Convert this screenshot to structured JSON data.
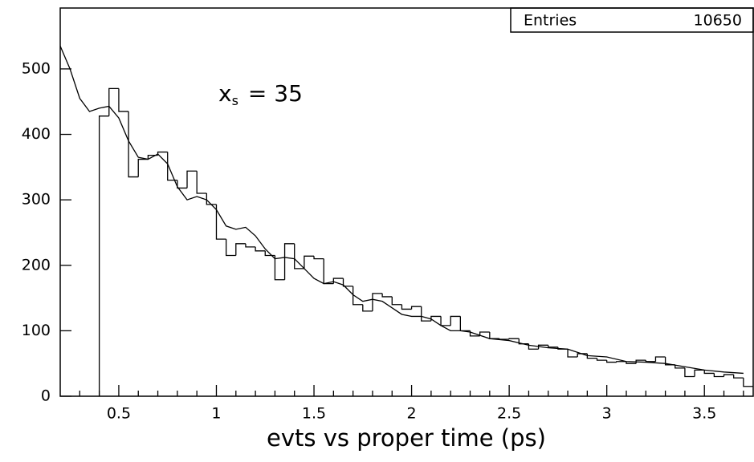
{
  "chart_data": {
    "type": "histogram",
    "xlabel": "evts vs proper time (ps)",
    "annotation": {
      "base": "x",
      "sub": "s",
      "text": "= 35"
    },
    "stats": {
      "label": "Entries",
      "value": 10650
    },
    "xlim": [
      0.2,
      3.75
    ],
    "ylim": [
      0,
      593
    ],
    "xticks": [
      0.5,
      1,
      1.5,
      2,
      2.5,
      3,
      3.5
    ],
    "xminorticks": [
      0.3,
      0.4,
      0.6,
      0.7,
      0.8,
      0.9,
      1.1,
      1.2,
      1.3,
      1.4,
      1.6,
      1.7,
      1.8,
      1.9,
      2.1,
      2.2,
      2.3,
      2.4,
      2.6,
      2.7,
      2.8,
      2.9,
      3.1,
      3.2,
      3.3,
      3.4,
      3.6,
      3.7
    ],
    "yticks": [
      0,
      100,
      200,
      300,
      400,
      500
    ],
    "color": "#000000",
    "bins": [
      0.4,
      0.45,
      0.5,
      0.55,
      0.6,
      0.65,
      0.7,
      0.75,
      0.8,
      0.85,
      0.9,
      0.95,
      1.0,
      1.05,
      1.1,
      1.15,
      1.2,
      1.25,
      1.3,
      1.35,
      1.4,
      1.45,
      1.5,
      1.55,
      1.6,
      1.65,
      1.7,
      1.75,
      1.8,
      1.85,
      1.9,
      1.95,
      2.0,
      2.05,
      2.1,
      2.15,
      2.2,
      2.25,
      2.3,
      2.35,
      2.4,
      2.45,
      2.5,
      2.55,
      2.6,
      2.65,
      2.7,
      2.75,
      2.8,
      2.85,
      2.9,
      2.95,
      3.0,
      3.05,
      3.1,
      3.15,
      3.2,
      3.25,
      3.3,
      3.35,
      3.4,
      3.45,
      3.5,
      3.55,
      3.6,
      3.65,
      3.7,
      3.75
    ],
    "counts": [
      428,
      470,
      435,
      335,
      362,
      368,
      373,
      330,
      318,
      344,
      310,
      293,
      240,
      215,
      233,
      228,
      222,
      215,
      178,
      233,
      195,
      214,
      210,
      172,
      180,
      168,
      140,
      130,
      157,
      152,
      140,
      133,
      137,
      115,
      122,
      108,
      122,
      100,
      92,
      98,
      88,
      87,
      88,
      80,
      72,
      78,
      75,
      72,
      60,
      65,
      58,
      55,
      52,
      53,
      50,
      55,
      53,
      60,
      48,
      43,
      30,
      40,
      35,
      30,
      33,
      28,
      15
    ],
    "fit": {
      "x": [
        0.2,
        0.25,
        0.3,
        0.35,
        0.4,
        0.45,
        0.5,
        0.55,
        0.6,
        0.65,
        0.7,
        0.75,
        0.8,
        0.85,
        0.9,
        0.95,
        1.0,
        1.05,
        1.1,
        1.15,
        1.2,
        1.25,
        1.3,
        1.35,
        1.4,
        1.45,
        1.5,
        1.55,
        1.6,
        1.65,
        1.7,
        1.75,
        1.8,
        1.85,
        1.9,
        1.95,
        2.0,
        2.05,
        2.1,
        2.15,
        2.2,
        2.25,
        2.3,
        2.4,
        2.5,
        2.6,
        2.7,
        2.8,
        2.9,
        3.0,
        3.1,
        3.2,
        3.3,
        3.4,
        3.5,
        3.6,
        3.7
      ],
      "values": [
        535,
        500,
        455,
        435,
        440,
        443,
        425,
        390,
        365,
        362,
        370,
        355,
        320,
        300,
        305,
        300,
        285,
        260,
        255,
        258,
        245,
        225,
        210,
        212,
        210,
        195,
        180,
        172,
        175,
        170,
        155,
        145,
        148,
        145,
        135,
        125,
        122,
        122,
        118,
        108,
        100,
        100,
        98,
        88,
        85,
        78,
        74,
        72,
        62,
        60,
        53,
        52,
        50,
        45,
        40,
        37,
        35
      ]
    }
  }
}
